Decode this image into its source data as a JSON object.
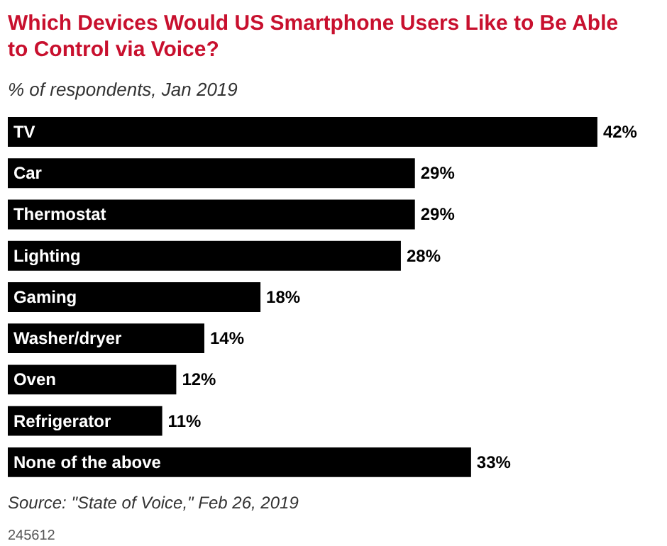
{
  "chart_data": {
    "type": "bar",
    "orientation": "horizontal",
    "title": "Which Devices Would US Smartphone Users Like to Be Able to Control via Voice?",
    "subtitle": "% of respondents, Jan 2019",
    "categories": [
      "TV",
      "Car",
      "Thermostat",
      "Lighting",
      "Gaming",
      "Washer/dryer",
      "Oven",
      "Refrigerator",
      "None of the above"
    ],
    "values": [
      42,
      29,
      29,
      28,
      18,
      14,
      12,
      11,
      33
    ],
    "value_labels": [
      "42%",
      "29%",
      "29%",
      "28%",
      "18%",
      "14%",
      "12%",
      "11%",
      "33%"
    ],
    "color": "#000000",
    "annotations": [
      "Source: \"State of Voice,\" Feb 26, 2019",
      "245612"
    ]
  }
}
